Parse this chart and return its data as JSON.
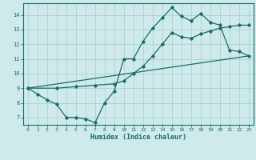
{
  "xlabel": "Humidex (Indice chaleur)",
  "bg_color": "#ceeaea",
  "grid_color": "#aed0d0",
  "line_color": "#1a6b6b",
  "x_ticks": [
    0,
    1,
    2,
    3,
    4,
    5,
    6,
    7,
    8,
    9,
    10,
    11,
    12,
    13,
    14,
    15,
    16,
    17,
    18,
    19,
    20,
    21,
    22,
    23
  ],
  "y_ticks": [
    7,
    8,
    9,
    10,
    11,
    12,
    13,
    14
  ],
  "ylim": [
    6.5,
    14.8
  ],
  "xlim": [
    -0.5,
    23.5
  ],
  "line1_x": [
    0,
    1,
    2,
    3,
    4,
    5,
    6,
    7,
    8,
    9,
    10,
    11,
    12,
    13,
    14,
    15,
    16,
    17,
    18,
    19,
    20,
    21,
    22,
    23
  ],
  "line1_y": [
    9.0,
    8.6,
    8.2,
    7.9,
    7.0,
    7.0,
    6.9,
    6.65,
    8.0,
    8.8,
    11.0,
    11.0,
    12.2,
    13.1,
    13.8,
    14.5,
    13.9,
    13.6,
    14.1,
    13.5,
    13.3,
    11.6,
    11.5,
    11.2
  ],
  "line2_x": [
    0,
    3,
    5,
    7,
    9,
    10,
    11,
    12,
    13,
    14,
    15,
    16,
    17,
    18,
    19,
    20,
    21,
    22,
    23
  ],
  "line2_y": [
    9.0,
    9.0,
    9.1,
    9.2,
    9.3,
    9.5,
    10.0,
    10.5,
    11.2,
    12.0,
    12.8,
    12.5,
    12.4,
    12.7,
    12.9,
    13.1,
    13.2,
    13.3,
    13.3
  ],
  "line3_x": [
    0,
    23
  ],
  "line3_y": [
    9.0,
    11.2
  ]
}
